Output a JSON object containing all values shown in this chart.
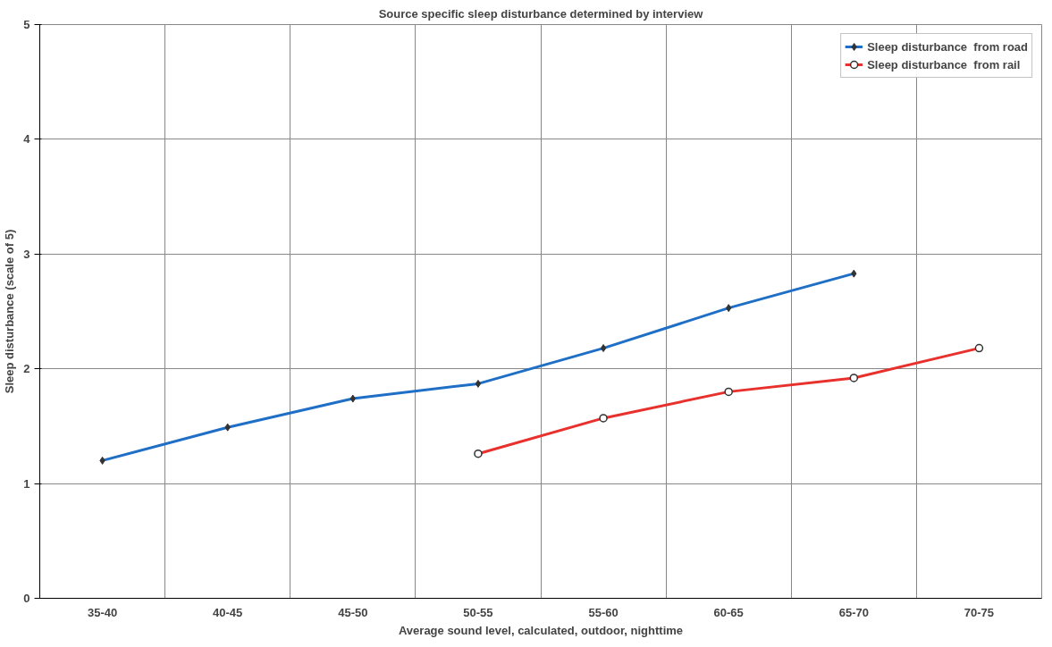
{
  "chart_data": {
    "type": "line",
    "title": "Source specific sleep disturbance determined by interview",
    "xlabel": "Average sound level, calculated, outdoor, nighttime",
    "ylabel": "Sleep disturbance (scale of 5)",
    "categories": [
      "35-40",
      "40-45",
      "45-50",
      "50-55",
      "55-60",
      "60-65",
      "65-70",
      "70-75"
    ],
    "series": [
      {
        "name": "Sleep disturbance  from road",
        "color": "#1f6fc6",
        "marker": "diamond",
        "values": [
          1.2,
          1.49,
          1.74,
          1.87,
          2.18,
          2.53,
          2.83,
          null
        ]
      },
      {
        "name": "Sleep disturbance  from rail",
        "color": "#e8302c",
        "marker": "circle",
        "values": [
          null,
          null,
          null,
          1.26,
          1.57,
          1.8,
          1.92,
          2.18
        ]
      }
    ],
    "ylim": [
      0,
      5
    ],
    "yticks": [
      0,
      1,
      2,
      3,
      4,
      5
    ],
    "grid": true,
    "legend": "top right",
    "line_style": "solid"
  }
}
